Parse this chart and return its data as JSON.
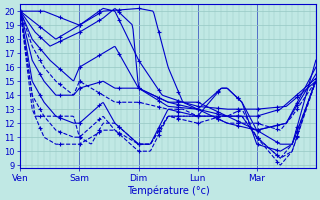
{
  "xlabel": "Température (°c)",
  "bg_color": "#c0e8e4",
  "line_color": "#0000cc",
  "grid_color": "#96c8c4",
  "tick_color": "#0000cc",
  "ylim": [
    8.8,
    20.5
  ],
  "yticks": [
    9,
    10,
    11,
    12,
    13,
    14,
    15,
    16,
    17,
    18,
    19,
    20
  ],
  "day_labels": [
    "Ven",
    "Sam",
    "Dim",
    "Lun",
    "Mar"
  ],
  "day_positions": [
    0.0,
    0.2,
    0.4,
    0.6,
    0.8
  ],
  "xlim": [
    0.0,
    1.0
  ],
  "series": [
    {
      "ls": "-",
      "pts": [
        [
          0.0,
          20
        ],
        [
          0.08,
          20
        ],
        [
          0.2,
          19
        ],
        [
          0.28,
          20
        ],
        [
          0.4,
          20.2
        ],
        [
          0.45,
          20.0
        ],
        [
          0.5,
          16
        ],
        [
          0.55,
          13.5
        ],
        [
          0.6,
          13.2
        ],
        [
          0.7,
          13.0
        ],
        [
          0.8,
          13.0
        ],
        [
          0.9,
          13.2
        ],
        [
          1.0,
          15.0
        ]
      ]
    },
    {
      "ls": "-",
      "pts": [
        [
          0.0,
          20
        ],
        [
          0.06,
          19
        ],
        [
          0.12,
          18
        ],
        [
          0.2,
          19
        ],
        [
          0.28,
          20.2
        ],
        [
          0.32,
          20
        ],
        [
          0.4,
          16.5
        ],
        [
          0.48,
          14
        ],
        [
          0.55,
          13.5
        ],
        [
          0.6,
          13.0
        ],
        [
          0.7,
          12.5
        ],
        [
          0.8,
          12.5
        ],
        [
          0.88,
          13.0
        ],
        [
          1.0,
          15.2
        ]
      ]
    },
    {
      "ls": "-",
      "pts": [
        [
          0.0,
          20
        ],
        [
          0.05,
          18.5
        ],
        [
          0.1,
          17.5
        ],
        [
          0.2,
          18.5
        ],
        [
          0.28,
          19.5
        ],
        [
          0.32,
          20.2
        ],
        [
          0.38,
          19
        ],
        [
          0.4,
          14.5
        ],
        [
          0.5,
          13.5
        ],
        [
          0.6,
          13.0
        ],
        [
          0.7,
          12.0
        ],
        [
          0.8,
          11.5
        ],
        [
          0.9,
          12.0
        ],
        [
          1.0,
          15.5
        ]
      ]
    },
    {
      "ls": "-",
      "pts": [
        [
          0.0,
          20
        ],
        [
          0.04,
          18
        ],
        [
          0.1,
          16.5
        ],
        [
          0.18,
          15
        ],
        [
          0.2,
          16
        ],
        [
          0.28,
          17
        ],
        [
          0.32,
          17.5
        ],
        [
          0.4,
          14.5
        ],
        [
          0.5,
          13.5
        ],
        [
          0.6,
          13.5
        ],
        [
          0.7,
          12.5
        ],
        [
          0.8,
          11.5
        ],
        [
          0.9,
          12.0
        ],
        [
          1.0,
          16.0
        ]
      ]
    },
    {
      "ls": "-",
      "pts": [
        [
          0.0,
          20
        ],
        [
          0.04,
          16.5
        ],
        [
          0.08,
          15
        ],
        [
          0.12,
          14
        ],
        [
          0.18,
          14
        ],
        [
          0.2,
          14.5
        ],
        [
          0.28,
          15
        ],
        [
          0.32,
          14.5
        ],
        [
          0.4,
          14.5
        ],
        [
          0.5,
          13.2
        ],
        [
          0.6,
          13.0
        ],
        [
          0.68,
          14.5
        ],
        [
          0.7,
          14.5
        ],
        [
          0.75,
          13.5
        ],
        [
          0.8,
          11.5
        ],
        [
          0.88,
          10.5
        ],
        [
          0.92,
          10.5
        ],
        [
          1.0,
          16.5
        ]
      ]
    },
    {
      "ls": "-",
      "pts": [
        [
          0.0,
          20
        ],
        [
          0.04,
          15
        ],
        [
          0.08,
          13.5
        ],
        [
          0.12,
          12.5
        ],
        [
          0.18,
          12
        ],
        [
          0.2,
          12
        ],
        [
          0.28,
          13.5
        ],
        [
          0.32,
          12
        ],
        [
          0.4,
          10.5
        ],
        [
          0.44,
          10.5
        ],
        [
          0.5,
          13.0
        ],
        [
          0.6,
          12.5
        ],
        [
          0.68,
          14.5
        ],
        [
          0.7,
          14.5
        ],
        [
          0.75,
          13.5
        ],
        [
          0.8,
          10.5
        ],
        [
          0.88,
          10.0
        ],
        [
          0.92,
          10.5
        ],
        [
          1.0,
          15.0
        ]
      ]
    },
    {
      "ls": "--",
      "pts": [
        [
          0.0,
          20
        ],
        [
          0.04,
          17.5
        ],
        [
          0.08,
          16
        ],
        [
          0.12,
          15
        ],
        [
          0.18,
          14
        ],
        [
          0.2,
          15
        ],
        [
          0.28,
          14
        ],
        [
          0.32,
          13.5
        ],
        [
          0.4,
          13.5
        ],
        [
          0.5,
          13.0
        ],
        [
          0.55,
          13.0
        ],
        [
          0.6,
          12.5
        ],
        [
          0.65,
          12.5
        ],
        [
          0.7,
          12.0
        ],
        [
          0.8,
          12.0
        ],
        [
          0.88,
          11.5
        ],
        [
          0.92,
          12.5
        ],
        [
          1.0,
          15.0
        ]
      ]
    },
    {
      "ls": "--",
      "pts": [
        [
          0.0,
          20
        ],
        [
          0.04,
          14
        ],
        [
          0.08,
          12.5
        ],
        [
          0.12,
          11.5
        ],
        [
          0.18,
          11
        ],
        [
          0.2,
          11
        ],
        [
          0.28,
          12.5
        ],
        [
          0.32,
          11.5
        ],
        [
          0.4,
          10.5
        ],
        [
          0.44,
          10.5
        ],
        [
          0.5,
          12.5
        ],
        [
          0.6,
          12.0
        ],
        [
          0.68,
          12.5
        ],
        [
          0.7,
          12.5
        ],
        [
          0.75,
          12.5
        ],
        [
          0.8,
          11.0
        ],
        [
          0.88,
          9.5
        ],
        [
          0.92,
          10.5
        ],
        [
          1.0,
          15.0
        ]
      ]
    },
    {
      "ls": "--",
      "pts": [
        [
          0.0,
          20
        ],
        [
          0.04,
          13
        ],
        [
          0.08,
          11
        ],
        [
          0.12,
          10.5
        ],
        [
          0.18,
          10.5
        ],
        [
          0.2,
          10.5
        ],
        [
          0.28,
          11.5
        ],
        [
          0.32,
          11.5
        ],
        [
          0.4,
          10.0
        ],
        [
          0.44,
          10.0
        ],
        [
          0.5,
          12.5
        ],
        [
          0.6,
          12.5
        ],
        [
          0.65,
          12.5
        ],
        [
          0.7,
          12.5
        ],
        [
          0.75,
          13.0
        ],
        [
          0.8,
          11.0
        ],
        [
          0.88,
          9.0
        ],
        [
          0.92,
          10.0
        ],
        [
          1.0,
          15.2
        ]
      ]
    },
    {
      "ls": "--",
      "pts": [
        [
          0.0,
          20
        ],
        [
          0.05,
          12.5
        ],
        [
          0.08,
          12.5
        ],
        [
          0.12,
          12.5
        ],
        [
          0.18,
          12.5
        ],
        [
          0.2,
          11
        ],
        [
          0.24,
          10.5
        ],
        [
          0.28,
          12
        ],
        [
          0.32,
          12
        ],
        [
          0.4,
          10.5
        ],
        [
          0.44,
          10.5
        ],
        [
          0.5,
          12.5
        ],
        [
          0.6,
          12.5
        ],
        [
          0.65,
          12.5
        ],
        [
          0.7,
          12.5
        ],
        [
          0.75,
          12.5
        ],
        [
          0.8,
          11.0
        ],
        [
          0.88,
          9.5
        ],
        [
          0.92,
          10.0
        ],
        [
          1.0,
          15.0
        ]
      ]
    }
  ]
}
